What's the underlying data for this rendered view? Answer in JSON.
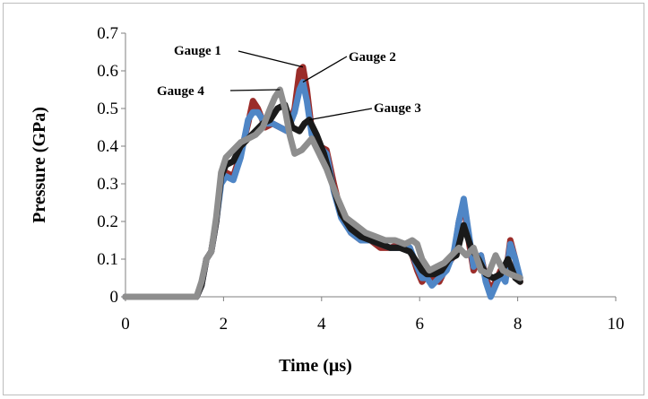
{
  "chart_data": {
    "type": "line",
    "title": "",
    "xlabel": "Time (µs)",
    "ylabel": "Pressure (GPa)",
    "xlim": [
      0,
      10
    ],
    "ylim": [
      0,
      0.7
    ],
    "x_ticks": [
      0,
      2,
      4,
      6,
      8,
      10
    ],
    "y_ticks": [
      0,
      0.1,
      0.2,
      0.3,
      0.4,
      0.5,
      0.6,
      0.7
    ],
    "x_tick_labels": [
      "0",
      "2",
      "4",
      "6",
      "8",
      "10"
    ],
    "y_tick_labels": [
      "0",
      "0.1",
      "0.2",
      "0.3",
      "0.4",
      "0.5",
      "0.6",
      "0.7"
    ],
    "grid": false,
    "legend": "none",
    "series": [
      {
        "name": "Gauge 1",
        "color": "#9b2d2a",
        "x": [
          0,
          1.45,
          1.55,
          1.65,
          1.75,
          1.85,
          1.95,
          2.05,
          2.2,
          2.35,
          2.5,
          2.6,
          2.7,
          2.85,
          3.0,
          3.15,
          3.3,
          3.45,
          3.55,
          3.62,
          3.7,
          3.8,
          3.95,
          4.1,
          4.25,
          4.4,
          4.6,
          4.8,
          5.0,
          5.2,
          5.4,
          5.6,
          5.8,
          5.95,
          6.05,
          6.15,
          6.25,
          6.4,
          6.55,
          6.7,
          6.8,
          6.9,
          7.0,
          7.1,
          7.25,
          7.35,
          7.45,
          7.55,
          7.65,
          7.75,
          7.85,
          7.95,
          8.05
        ],
        "y": [
          0,
          0,
          0.03,
          0.1,
          0.12,
          0.2,
          0.31,
          0.33,
          0.32,
          0.38,
          0.46,
          0.52,
          0.5,
          0.45,
          0.46,
          0.45,
          0.44,
          0.5,
          0.6,
          0.61,
          0.55,
          0.44,
          0.4,
          0.39,
          0.3,
          0.22,
          0.17,
          0.15,
          0.15,
          0.13,
          0.13,
          0.14,
          0.13,
          0.07,
          0.04,
          0.06,
          0.05,
          0.04,
          0.08,
          0.11,
          0.2,
          0.25,
          0.15,
          0.07,
          0.11,
          0.05,
          0.02,
          0.04,
          0.07,
          0.05,
          0.15,
          0.1,
          0.04
        ]
      },
      {
        "name": "Gauge 2",
        "color": "#4f86c6",
        "x": [
          0,
          1.45,
          1.55,
          1.65,
          1.75,
          1.85,
          1.95,
          2.05,
          2.2,
          2.35,
          2.5,
          2.6,
          2.7,
          2.85,
          3.0,
          3.15,
          3.3,
          3.45,
          3.55,
          3.62,
          3.7,
          3.8,
          3.95,
          4.1,
          4.25,
          4.4,
          4.6,
          4.8,
          5.0,
          5.2,
          5.4,
          5.6,
          5.8,
          5.95,
          6.05,
          6.15,
          6.25,
          6.4,
          6.55,
          6.7,
          6.8,
          6.9,
          7.0,
          7.1,
          7.25,
          7.35,
          7.45,
          7.55,
          7.65,
          7.75,
          7.85,
          7.95,
          8.05
        ],
        "y": [
          0,
          0,
          0.03,
          0.1,
          0.12,
          0.2,
          0.3,
          0.32,
          0.31,
          0.37,
          0.47,
          0.49,
          0.49,
          0.46,
          0.46,
          0.45,
          0.44,
          0.49,
          0.55,
          0.57,
          0.52,
          0.43,
          0.4,
          0.38,
          0.28,
          0.21,
          0.17,
          0.15,
          0.15,
          0.14,
          0.13,
          0.13,
          0.13,
          0.08,
          0.05,
          0.05,
          0.03,
          0.05,
          0.07,
          0.12,
          0.2,
          0.26,
          0.17,
          0.08,
          0.11,
          0.04,
          0.0,
          0.03,
          0.06,
          0.04,
          0.14,
          0.1,
          0.05
        ]
      },
      {
        "name": "Gauge 3",
        "color": "#1a1a1a",
        "x": [
          0,
          1.45,
          1.55,
          1.65,
          1.75,
          1.85,
          1.95,
          2.05,
          2.2,
          2.35,
          2.5,
          2.65,
          2.8,
          2.95,
          3.1,
          3.25,
          3.4,
          3.55,
          3.65,
          3.75,
          3.9,
          4.05,
          4.2,
          4.4,
          4.6,
          4.8,
          5.0,
          5.2,
          5.4,
          5.6,
          5.8,
          5.95,
          6.05,
          6.15,
          6.3,
          6.45,
          6.6,
          6.75,
          6.9,
          7.05,
          7.2,
          7.35,
          7.5,
          7.65,
          7.8,
          7.95,
          8.05
        ],
        "y": [
          0,
          0,
          0.03,
          0.1,
          0.12,
          0.2,
          0.32,
          0.35,
          0.36,
          0.4,
          0.42,
          0.44,
          0.46,
          0.47,
          0.5,
          0.51,
          0.45,
          0.44,
          0.46,
          0.47,
          0.43,
          0.38,
          0.31,
          0.22,
          0.18,
          0.16,
          0.15,
          0.14,
          0.13,
          0.13,
          0.12,
          0.09,
          0.07,
          0.06,
          0.06,
          0.07,
          0.1,
          0.11,
          0.19,
          0.13,
          0.1,
          0.06,
          0.05,
          0.06,
          0.1,
          0.05,
          0.04
        ]
      },
      {
        "name": "Gauge 4",
        "color": "#8e8e8e",
        "x": [
          0,
          1.45,
          1.55,
          1.65,
          1.75,
          1.85,
          1.95,
          2.05,
          2.2,
          2.35,
          2.5,
          2.65,
          2.8,
          2.95,
          3.05,
          3.15,
          3.25,
          3.35,
          3.45,
          3.6,
          3.8,
          3.95,
          4.1,
          4.3,
          4.5,
          4.7,
          4.9,
          5.1,
          5.3,
          5.5,
          5.7,
          5.85,
          5.95,
          6.05,
          6.2,
          6.35,
          6.5,
          6.65,
          6.8,
          6.95,
          7.1,
          7.25,
          7.4,
          7.55,
          7.7,
          7.85,
          8.05
        ],
        "y": [
          0,
          0,
          0.04,
          0.1,
          0.12,
          0.21,
          0.33,
          0.37,
          0.39,
          0.41,
          0.42,
          0.43,
          0.45,
          0.5,
          0.53,
          0.55,
          0.5,
          0.43,
          0.38,
          0.39,
          0.42,
          0.38,
          0.34,
          0.27,
          0.21,
          0.19,
          0.17,
          0.16,
          0.15,
          0.15,
          0.14,
          0.15,
          0.14,
          0.1,
          0.07,
          0.08,
          0.09,
          0.11,
          0.13,
          0.11,
          0.13,
          0.07,
          0.06,
          0.11,
          0.07,
          0.06,
          0.05
        ]
      }
    ],
    "annotations": [
      {
        "text": "Gauge 1",
        "target": [
          3.62,
          0.61
        ]
      },
      {
        "text": "Gauge 2",
        "target": [
          3.62,
          0.57
        ]
      },
      {
        "text": "Gauge 4",
        "target": [
          3.15,
          0.55
        ]
      },
      {
        "text": "Gauge 3",
        "target": [
          3.75,
          0.47
        ]
      }
    ]
  }
}
